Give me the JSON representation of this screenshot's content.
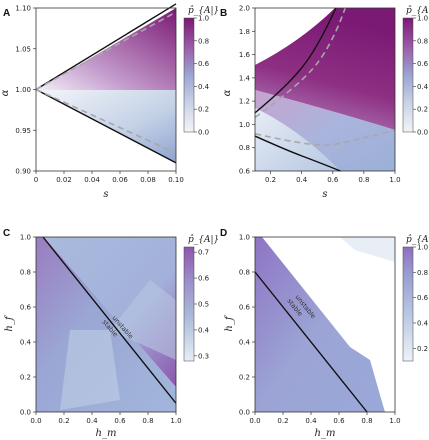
{
  "chart_data": [
    {
      "panel": "A",
      "type": "heatmap",
      "xlabel": "s",
      "ylabel": "α",
      "xlim": [
        0,
        0.1
      ],
      "ylim": [
        0.9,
        1.1
      ],
      "xticks": [
        "0",
        "0.02",
        "0.04",
        "0.06",
        "0.08",
        "0.10"
      ],
      "yticks": [
        "0.90",
        "0.95",
        "1.00",
        "1.05",
        "1.10"
      ],
      "colorbar": {
        "title": "p̂_{A|}",
        "min": 0.0,
        "max": 1.0,
        "ticks": [
          "0.0",
          "0.2",
          "0.4",
          "0.6",
          "0.8",
          "1.0"
        ]
      },
      "boundaries": [
        {
          "style": "solid",
          "points": [
            [
              0,
              1.0
            ],
            [
              0.1,
              1.105
            ]
          ]
        },
        {
          "style": "solid",
          "points": [
            [
              0,
              1.0
            ],
            [
              0.1,
              0.91
            ]
          ]
        },
        {
          "style": "dashed",
          "points": [
            [
              0,
              1.0
            ],
            [
              0.1,
              1.095
            ]
          ]
        },
        {
          "style": "dashed",
          "points": [
            [
              0,
              1.0
            ],
            [
              0.1,
              0.922
            ]
          ]
        }
      ]
    },
    {
      "panel": "B",
      "type": "heatmap",
      "xlabel": "s",
      "ylabel": "α",
      "xlim": [
        0.1,
        1.0
      ],
      "ylim": [
        0.6,
        2.0
      ],
      "xticks": [
        "0.2",
        "0.4",
        "0.6",
        "0.8",
        "1.0"
      ],
      "yticks": [
        "0.6",
        "0.8",
        "1.0",
        "1.2",
        "1.4",
        "1.6",
        "1.8",
        "2.0"
      ],
      "colorbar": {
        "title": "p̂_{A|}",
        "min": 0.0,
        "max": 1.0,
        "ticks": [
          "0.0",
          "0.2",
          "0.4",
          "0.6",
          "0.8",
          "1.0"
        ]
      },
      "boundaries": [
        {
          "style": "solid",
          "points": [
            [
              0.1,
              1.1
            ],
            [
              0.3,
              1.32
            ],
            [
              0.5,
              1.65
            ],
            [
              0.62,
              2.0
            ]
          ]
        },
        {
          "style": "solid",
          "points": [
            [
              0.1,
              0.9
            ],
            [
              0.3,
              0.78
            ],
            [
              0.5,
              0.68
            ],
            [
              0.65,
              0.6
            ]
          ]
        },
        {
          "style": "dashed",
          "points": [
            [
              0.1,
              1.06
            ],
            [
              0.4,
              1.35
            ],
            [
              0.6,
              1.7
            ],
            [
              0.68,
              2.0
            ]
          ]
        },
        {
          "style": "dashed",
          "points": [
            [
              0.1,
              0.92
            ],
            [
              0.5,
              0.8
            ],
            [
              0.7,
              0.85
            ],
            [
              1.0,
              0.95
            ]
          ]
        }
      ]
    },
    {
      "panel": "C",
      "type": "heatmap",
      "xlabel": "h_m",
      "ylabel": "h_f",
      "xlim": [
        0,
        1
      ],
      "ylim": [
        0,
        1
      ],
      "xticks": [
        "0.0",
        "0.2",
        "0.4",
        "0.6",
        "0.8",
        "1.0"
      ],
      "yticks": [
        "0.0",
        "0.2",
        "0.4",
        "0.6",
        "0.8",
        "1.0"
      ],
      "colorbar": {
        "title": "p̂_{A|}",
        "min": 0.28,
        "max": 0.72,
        "ticks": [
          "0.3",
          "0.4",
          "0.5",
          "0.6",
          "0.7"
        ]
      },
      "boundaries": [
        {
          "style": "solid",
          "points": [
            [
              0.05,
              1.0
            ],
            [
              1.0,
              0.05
            ]
          ]
        }
      ],
      "annotations": [
        "unstable",
        "stable"
      ]
    },
    {
      "panel": "D",
      "type": "heatmap",
      "xlabel": "h_m",
      "ylabel": "h_f",
      "xlim": [
        0,
        1
      ],
      "ylim": [
        0,
        1
      ],
      "xticks": [
        "0.0",
        "0.2",
        "0.4",
        "0.6",
        "0.8",
        "1.0"
      ],
      "yticks": [
        "0.0",
        "0.2",
        "0.4",
        "0.6",
        "0.8",
        "1.0"
      ],
      "colorbar": {
        "title": "p̂_{A|}",
        "min": 0.1,
        "max": 1.0,
        "ticks": [
          "0.2",
          "0.4",
          "0.6",
          "0.8",
          "1.0"
        ]
      },
      "boundaries": [
        {
          "style": "solid",
          "points": [
            [
              0.0,
              0.8
            ],
            [
              0.8,
              0.0
            ]
          ]
        }
      ],
      "annotations": [
        "unstable",
        "stable"
      ]
    }
  ]
}
